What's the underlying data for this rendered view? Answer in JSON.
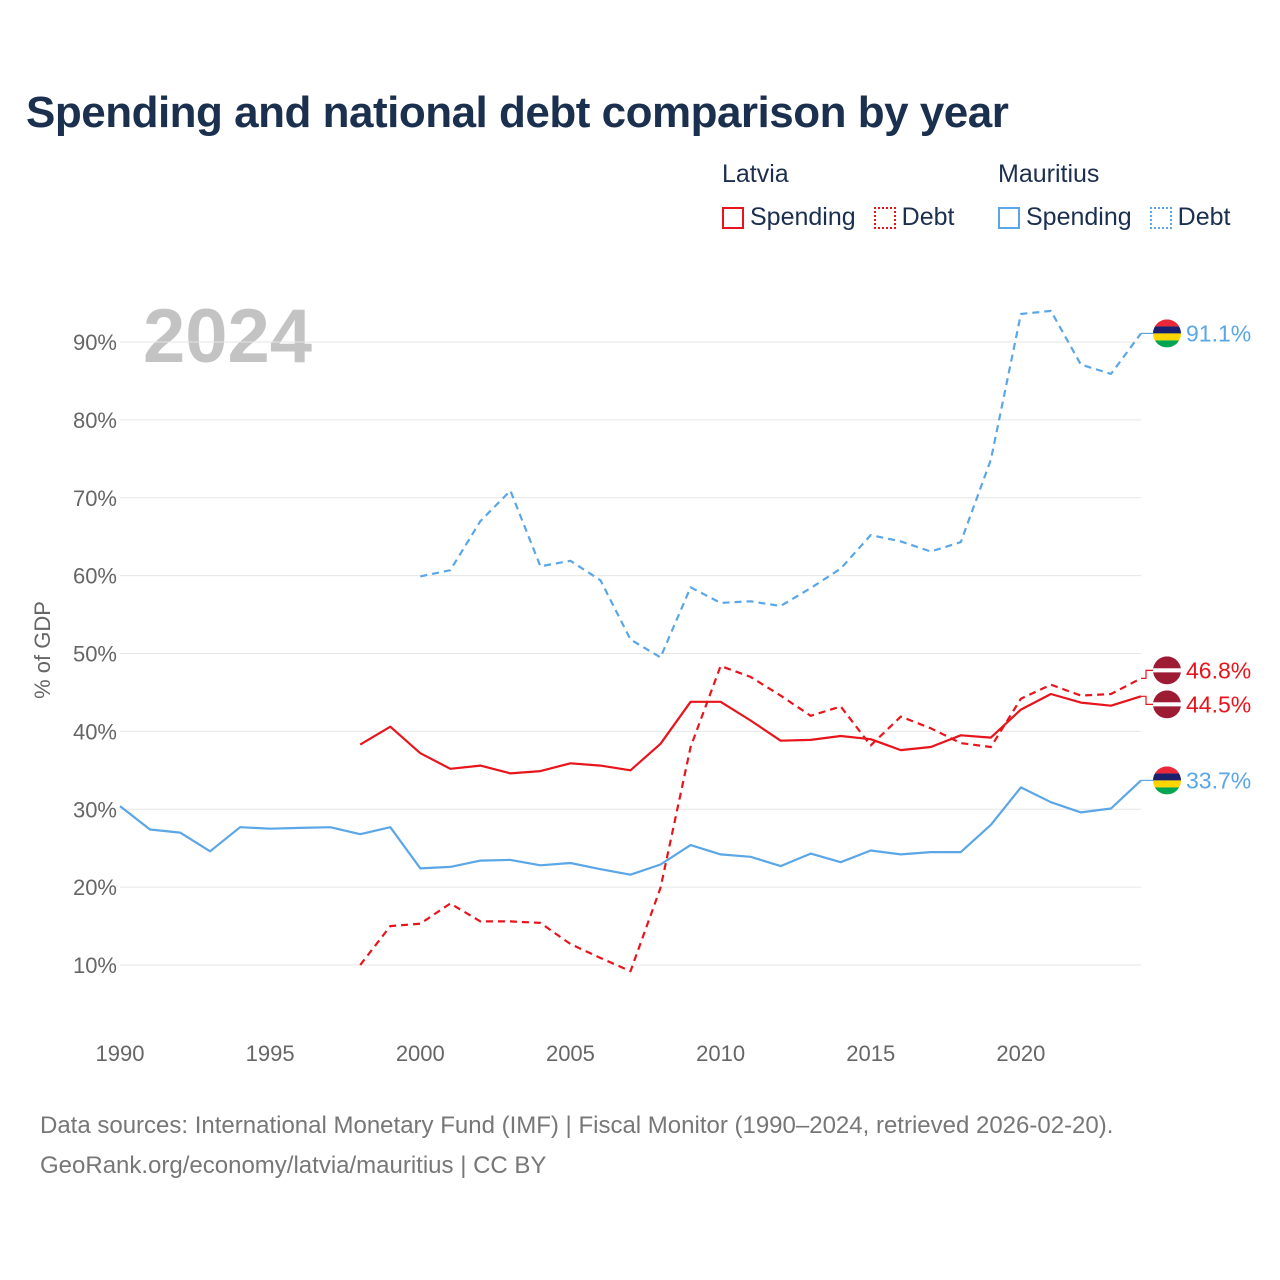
{
  "title": "Spending and national debt comparison by year",
  "year_watermark": "2024",
  "legend": {
    "groups": [
      {
        "name": "Latvia",
        "color": "#e8141c",
        "items": [
          {
            "label": "Spending",
            "style": "solid"
          },
          {
            "label": "Debt",
            "style": "dotted"
          }
        ]
      },
      {
        "name": "Mauritius",
        "color": "#5aa6e6",
        "items": [
          {
            "label": "Spending",
            "style": "solid"
          },
          {
            "label": "Debt",
            "style": "dotted"
          }
        ]
      }
    ]
  },
  "footer": {
    "line1": "Data sources: International Monetary Fund (IMF) | Fiscal Monitor (1990–2024, retrieved 2026-02-20).",
    "line2": "GeoRank.org/economy/latvia/mauritius | CC BY"
  },
  "chart_data": {
    "type": "line",
    "title": "Spending and national debt comparison by year",
    "xlabel": "",
    "ylabel": "% of GDP",
    "xlim": [
      1990,
      2024
    ],
    "ylim": [
      0,
      95
    ],
    "x_ticks": [
      1990,
      1995,
      2000,
      2005,
      2010,
      2015,
      2020
    ],
    "y_ticks": [
      10,
      20,
      30,
      40,
      50,
      60,
      70,
      80,
      90
    ],
    "y_tick_labels": [
      "10%",
      "20%",
      "30%",
      "40%",
      "50%",
      "60%",
      "70%",
      "80%",
      "90%"
    ],
    "x_tick_labels": [
      "1990",
      "1995",
      "2000",
      "2005",
      "2010",
      "2015",
      "2020"
    ],
    "grid": true,
    "series": [
      {
        "name": "Latvia Spending",
        "country": "Latvia",
        "metric": "Spending",
        "color": "#e8141c",
        "dash": "solid",
        "x": [
          1998,
          1999,
          2000,
          2001,
          2002,
          2003,
          2004,
          2005,
          2006,
          2007,
          2008,
          2009,
          2010,
          2011,
          2012,
          2013,
          2014,
          2015,
          2016,
          2017,
          2018,
          2019,
          2020,
          2021,
          2022,
          2023,
          2024
        ],
        "values": [
          38.3,
          40.6,
          37.2,
          35.2,
          35.6,
          34.6,
          34.9,
          35.9,
          35.6,
          35.0,
          38.4,
          43.8,
          43.8,
          41.4,
          38.8,
          38.9,
          39.4,
          39.0,
          37.6,
          38.0,
          39.5,
          39.2,
          42.8,
          44.8,
          43.7,
          43.3,
          44.5
        ],
        "end_label": "44.5%"
      },
      {
        "name": "Latvia Debt",
        "country": "Latvia",
        "metric": "Debt",
        "color": "#e8141c",
        "dash": "dashed",
        "x": [
          1998,
          1999,
          2000,
          2001,
          2002,
          2003,
          2004,
          2005,
          2006,
          2007,
          2008,
          2009,
          2010,
          2011,
          2012,
          2013,
          2014,
          2015,
          2016,
          2017,
          2018,
          2019,
          2020,
          2021,
          2022,
          2023,
          2024
        ],
        "values": [
          10.0,
          15.0,
          15.3,
          17.9,
          15.6,
          15.6,
          15.4,
          12.7,
          10.9,
          9.2,
          19.9,
          38.0,
          48.4,
          47.0,
          44.6,
          42.0,
          43.2,
          38.2,
          41.9,
          40.4,
          38.5,
          38.0,
          44.2,
          46.0,
          44.6,
          44.8,
          46.8
        ],
        "end_label": "46.8%"
      },
      {
        "name": "Mauritius Spending",
        "country": "Mauritius",
        "metric": "Spending",
        "color": "#5aa6e6",
        "dash": "solid",
        "x": [
          1990,
          1991,
          1992,
          1993,
          1994,
          1995,
          1996,
          1997,
          1998,
          1999,
          2000,
          2001,
          2002,
          2003,
          2004,
          2005,
          2006,
          2007,
          2008,
          2009,
          2010,
          2011,
          2012,
          2013,
          2014,
          2015,
          2016,
          2017,
          2018,
          2019,
          2020,
          2021,
          2022,
          2023,
          2024
        ],
        "values": [
          30.4,
          27.4,
          27.0,
          24.6,
          27.7,
          27.5,
          27.6,
          27.7,
          26.8,
          27.7,
          22.4,
          22.6,
          23.4,
          23.5,
          22.8,
          23.1,
          22.3,
          21.6,
          22.9,
          25.4,
          24.2,
          23.9,
          22.7,
          24.3,
          23.2,
          24.7,
          24.2,
          24.5,
          24.5,
          28.0,
          32.8,
          30.9,
          29.6,
          30.1,
          33.7
        ],
        "end_label": "33.7%"
      },
      {
        "name": "Mauritius Debt",
        "country": "Mauritius",
        "metric": "Debt",
        "color": "#5aa6e6",
        "dash": "dashed",
        "x": [
          2000,
          2001,
          2002,
          2003,
          2004,
          2005,
          2006,
          2007,
          2008,
          2009,
          2010,
          2011,
          2012,
          2013,
          2014,
          2015,
          2016,
          2017,
          2018,
          2019,
          2020,
          2021,
          2022,
          2023,
          2024
        ],
        "values": [
          59.9,
          60.7,
          67.0,
          70.9,
          61.2,
          61.9,
          59.4,
          51.8,
          49.5,
          58.5,
          56.5,
          56.7,
          56.1,
          58.4,
          60.9,
          65.2,
          64.4,
          63.1,
          64.3,
          74.9,
          93.6,
          94.0,
          87.1,
          85.9,
          91.1
        ],
        "end_label": "91.1%"
      }
    ]
  }
}
